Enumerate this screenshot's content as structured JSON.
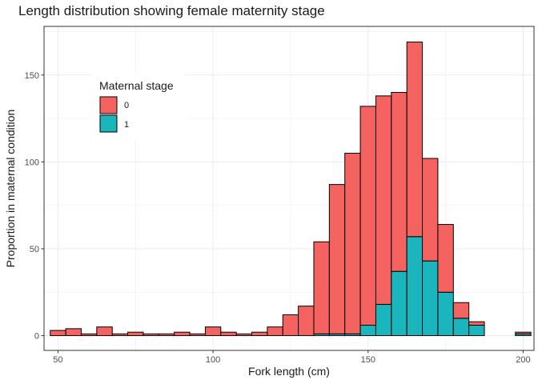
{
  "chart_data": {
    "type": "bar",
    "subtype": "stacked-histogram",
    "title": "Length distribution showing female maternity stage",
    "xlabel": "Fork length (cm)",
    "ylabel": "Proportion in maternal condition",
    "xlim": [
      45.5,
      203.5
    ],
    "ylim": [
      -8.5,
      178
    ],
    "x_ticks": [
      50,
      100,
      150,
      200
    ],
    "y_ticks": [
      0,
      50,
      100,
      150
    ],
    "grid": true,
    "legend": {
      "title": "Maternal stage",
      "position": "top-left, inside plot",
      "entries": [
        "0",
        "1"
      ]
    },
    "bin_width": 5,
    "bin_centers": [
      50,
      55,
      60,
      65,
      70,
      75,
      80,
      85,
      90,
      95,
      100,
      105,
      110,
      115,
      120,
      125,
      130,
      135,
      140,
      145,
      150,
      155,
      160,
      165,
      170,
      175,
      180,
      185,
      190,
      195,
      200
    ],
    "series": [
      {
        "name": "1",
        "color": "#00BFC4",
        "display_color": "#1AB5BD",
        "values": [
          0,
          0,
          0,
          0,
          0,
          0,
          0,
          0,
          0,
          0,
          0,
          0,
          0,
          0,
          0,
          0,
          0,
          1,
          1,
          1,
          6,
          18,
          37,
          57,
          43,
          25,
          10,
          6,
          0,
          0,
          1
        ]
      },
      {
        "name": "0",
        "color": "#F8766D",
        "display_color": "#F4635F",
        "values": [
          3,
          4,
          1,
          5,
          1,
          2,
          1,
          1,
          2,
          1,
          5,
          2,
          1,
          2,
          5,
          12,
          17,
          53,
          86,
          104,
          126,
          120,
          103,
          112,
          59,
          39,
          9,
          2,
          0,
          0,
          1
        ]
      }
    ]
  }
}
